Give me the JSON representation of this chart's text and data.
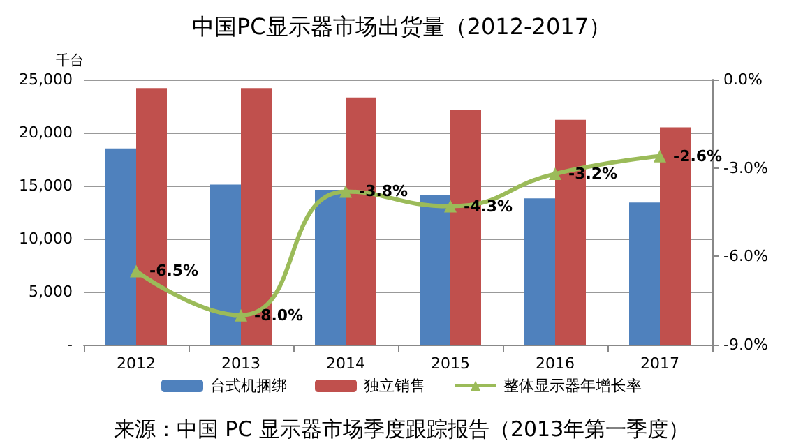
{
  "chart_data": {
    "type": "bar",
    "title": "中国PC显示器市场出货量（2012-2017）",
    "ylabel": "千台",
    "categories": [
      "2012",
      "2013",
      "2014",
      "2015",
      "2016",
      "2017"
    ],
    "series": [
      {
        "name": "台式机捆绑",
        "color": "#4f81bd",
        "values": [
          18500,
          15100,
          14600,
          14100,
          13800,
          13400
        ]
      },
      {
        "name": "独立销售",
        "color": "#c0504d",
        "values": [
          24200,
          24200,
          23300,
          22100,
          21200,
          20500
        ]
      },
      {
        "name": "整体显示器年增长率",
        "type": "line",
        "axis": "y2",
        "color": "#9bbb59",
        "marker": "triangle",
        "values": [
          -6.5,
          -8.0,
          -3.8,
          -4.3,
          -3.2,
          -2.6
        ],
        "value_labels": [
          "-6.5%",
          "-8.0%",
          "-3.8%",
          "-4.3%",
          "-3.2%",
          "-2.6%"
        ]
      }
    ],
    "ylim": [
      0,
      25000
    ],
    "yticks": [
      {
        "value": 0,
        "label": "-"
      },
      {
        "value": 5000,
        "label": "5,000"
      },
      {
        "value": 10000,
        "label": "10,000"
      },
      {
        "value": 15000,
        "label": "15,000"
      },
      {
        "value": 20000,
        "label": "20,000"
      },
      {
        "value": 25000,
        "label": "25,000"
      }
    ],
    "y2lim": [
      -9,
      0
    ],
    "y2ticks": [
      {
        "value": -9,
        "label": "-9.0%"
      },
      {
        "value": -6,
        "label": "-6.0%"
      },
      {
        "value": -3,
        "label": "-3.0%"
      },
      {
        "value": 0,
        "label": "0.0%"
      }
    ],
    "grid": "y",
    "legend": "bottom",
    "annotations": [
      "来源：中国 PC 显示器市场季度跟踪报告（2013年第一季度）"
    ]
  }
}
